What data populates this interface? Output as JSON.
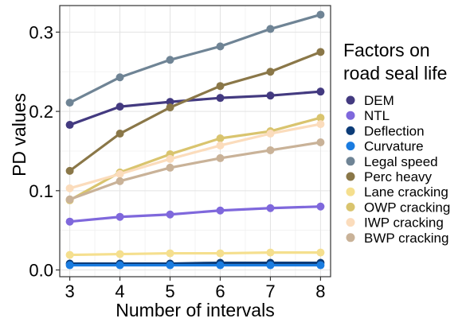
{
  "chart_data": {
    "type": "line",
    "xlabel": "Number of intervals",
    "ylabel": "PD values",
    "x": [
      3,
      4,
      5,
      6,
      7,
      8
    ],
    "xlim": [
      2.8,
      8.2
    ],
    "ylim": [
      -0.0085,
      0.3335
    ],
    "yticks": [
      0.0,
      0.1,
      0.2,
      0.3
    ],
    "ytick_labels": [
      "0.0",
      "0.1",
      "0.2",
      "0.3"
    ],
    "xticks": [
      3,
      4,
      5,
      6,
      7,
      8
    ],
    "xtick_labels": [
      "3",
      "4",
      "5",
      "6",
      "7",
      "8"
    ],
    "grid": true,
    "legend_title_lines": [
      "Factors on",
      "road seal life"
    ],
    "legend_placement": "right",
    "series": [
      {
        "name": "DEM",
        "color": "#433a80",
        "values": [
          0.183,
          0.206,
          0.212,
          0.217,
          0.22,
          0.225
        ]
      },
      {
        "name": "NTL",
        "color": "#7f68dc",
        "values": [
          0.061,
          0.067,
          0.07,
          0.075,
          0.078,
          0.08
        ]
      },
      {
        "name": "Deflection",
        "color": "#0c3c78",
        "values": [
          0.008,
          0.008,
          0.008,
          0.009,
          0.009,
          0.009
        ]
      },
      {
        "name": "Curvature",
        "color": "#1a7ce0",
        "values": [
          0.006,
          0.006,
          0.006,
          0.006,
          0.006,
          0.006
        ]
      },
      {
        "name": "Legal speed",
        "color": "#6f8495",
        "values": [
          0.211,
          0.243,
          0.265,
          0.282,
          0.304,
          0.322
        ]
      },
      {
        "name": "Perc heavy",
        "color": "#8a7748",
        "values": [
          0.125,
          0.172,
          0.205,
          0.232,
          0.25,
          0.275
        ]
      },
      {
        "name": "Lane cracking",
        "color": "#f5df8e",
        "values": [
          0.019,
          0.02,
          0.021,
          0.021,
          0.022,
          0.022
        ]
      },
      {
        "name": "OWP cracking",
        "color": "#d9c46e",
        "values": [
          0.088,
          0.123,
          0.146,
          0.166,
          0.175,
          0.192
        ]
      },
      {
        "name": "IWP cracking",
        "color": "#fbdcbc",
        "values": [
          0.103,
          0.121,
          0.14,
          0.157,
          0.172,
          0.184
        ]
      },
      {
        "name": "BWP cracking",
        "color": "#c9b298",
        "values": [
          0.089,
          0.112,
          0.129,
          0.141,
          0.151,
          0.161
        ]
      }
    ]
  }
}
